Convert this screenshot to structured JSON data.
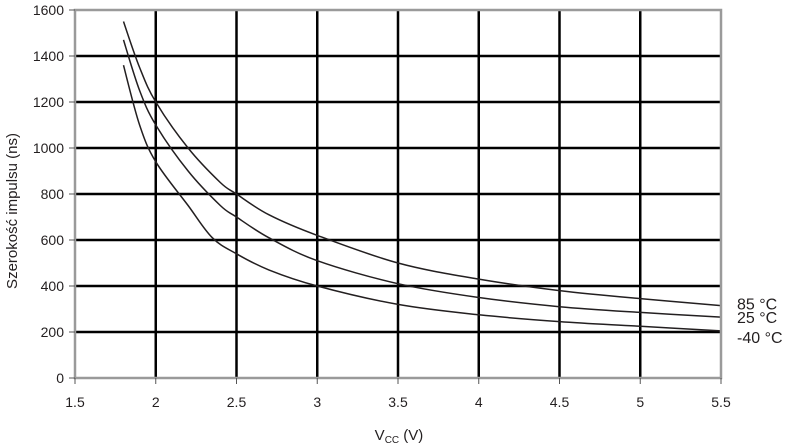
{
  "chart_data": {
    "type": "line",
    "xlabel_main": "V",
    "xlabel_sub": "CC",
    "xlabel_unit": " (V)",
    "ylabel": "Szerokość impulsu (ns)",
    "xlim": [
      1.5,
      5.5
    ],
    "ylim": [
      0,
      1600
    ],
    "x_ticks": [
      "1.5",
      "2",
      "2.5",
      "3",
      "3.5",
      "4",
      "4.5",
      "5",
      "5.5"
    ],
    "y_ticks": [
      "0",
      "200",
      "400",
      "600",
      "800",
      "1000",
      "1200",
      "1400",
      "1600"
    ],
    "grid": true,
    "legend": "right-end labels",
    "colors": {
      "line": "#231f20",
      "grid": "#000000",
      "frame": "#9a9a9a"
    },
    "series": [
      {
        "name": "85 °C",
        "x": [
          1.8,
          1.9,
          2.0,
          2.2,
          2.4,
          2.5,
          2.7,
          3.0,
          3.5,
          4.0,
          4.5,
          5.0,
          5.5
        ],
        "values": [
          1550,
          1350,
          1200,
          1000,
          850,
          800,
          710,
          620,
          500,
          430,
          380,
          345,
          315
        ]
      },
      {
        "name": "25 °C",
        "x": [
          1.8,
          1.9,
          2.0,
          2.2,
          2.4,
          2.5,
          2.7,
          3.0,
          3.5,
          4.0,
          4.5,
          5.0,
          5.5
        ],
        "values": [
          1470,
          1250,
          1100,
          900,
          750,
          700,
          610,
          510,
          410,
          350,
          310,
          285,
          265
        ]
      },
      {
        "name": "-40 °C",
        "x": [
          1.8,
          1.9,
          2.0,
          2.2,
          2.35,
          2.5,
          2.7,
          3.0,
          3.5,
          4.0,
          4.5,
          5.0,
          5.5
        ],
        "values": [
          1360,
          1100,
          940,
          750,
          610,
          540,
          470,
          400,
          320,
          275,
          245,
          225,
          205
        ]
      }
    ]
  }
}
